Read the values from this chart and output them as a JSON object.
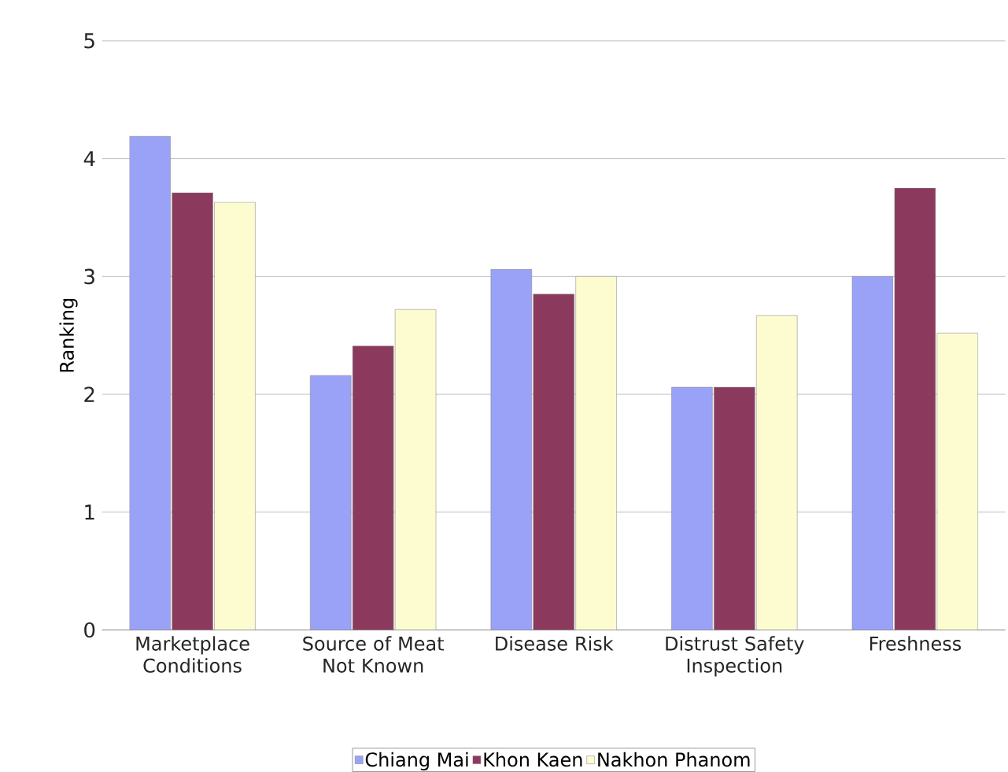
{
  "chart_data": {
    "type": "bar",
    "ylabel": "Ranking",
    "categories": [
      "Marketplace Conditions",
      "Source of Meat Not Known",
      "Disease Risk",
      "Distrust Safety Inspection",
      "Freshness"
    ],
    "series": [
      {
        "name": "Chiang Mai",
        "color": "#9aa2f8",
        "values": [
          4.19,
          2.16,
          3.06,
          2.06,
          3.0
        ]
      },
      {
        "name": "Khon Kaen",
        "color": "#8b3a5e",
        "values": [
          3.71,
          2.41,
          2.85,
          2.06,
          3.75
        ]
      },
      {
        "name": "Nakhon Phanom",
        "color": "#fdfbd0",
        "values": [
          3.63,
          2.72,
          3.0,
          2.67,
          2.52
        ]
      }
    ],
    "ylim": [
      0,
      5
    ],
    "yticks": [
      0,
      1,
      2,
      3,
      4,
      5
    ],
    "grid": "y",
    "legend": "bottom"
  }
}
